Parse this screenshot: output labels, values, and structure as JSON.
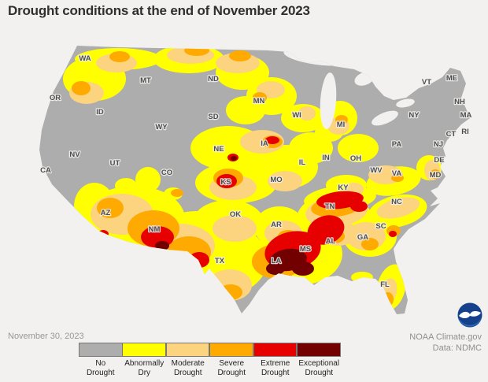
{
  "header": {
    "title": "Drought conditions at the end of November 2023"
  },
  "map": {
    "states": [
      "WA",
      "OR",
      "CA",
      "NV",
      "ID",
      "MT",
      "WY",
      "UT",
      "AZ",
      "CO",
      "NM",
      "ND",
      "SD",
      "NE",
      "KS",
      "OK",
      "TX",
      "MN",
      "IA",
      "MO",
      "AR",
      "LA",
      "WI",
      "IL",
      "IN",
      "MS",
      "MI",
      "KY",
      "TN",
      "AL",
      "OH",
      "GA",
      "WV",
      "VA",
      "SC",
      "NC",
      "FL",
      "PA",
      "NY",
      "VT",
      "ME",
      "NH",
      "MA",
      "CT",
      "RI",
      "NJ",
      "DE",
      "MD"
    ],
    "no_drought_color": "#adadad",
    "background_color": "#f2f1ef"
  },
  "legend": {
    "items": [
      {
        "label": "No Drought",
        "line1": "No",
        "line2": "Drought",
        "color": "#adadad"
      },
      {
        "label": "Abnormally Dry",
        "line1": "Abnormally",
        "line2": "Dry",
        "color": "#ffff00"
      },
      {
        "label": "Moderate Drought",
        "line1": "Moderate",
        "line2": "Drought",
        "color": "#fcd37f"
      },
      {
        "label": "Severe Drought",
        "line1": "Severe",
        "line2": "Drought",
        "color": "#ffaa00"
      },
      {
        "label": "Extreme Drought",
        "line1": "Extreme",
        "line2": "Drought",
        "color": "#e60000"
      },
      {
        "label": "Exceptional Drought",
        "line1": "Exceptional",
        "line2": "Drought",
        "color": "#730000"
      }
    ]
  },
  "footer": {
    "date": "November 30, 2023",
    "attribution_line1": "NOAA Climate.gov",
    "attribution_line2": "Data: NDMC"
  },
  "logo": {
    "name": "NOAA"
  }
}
